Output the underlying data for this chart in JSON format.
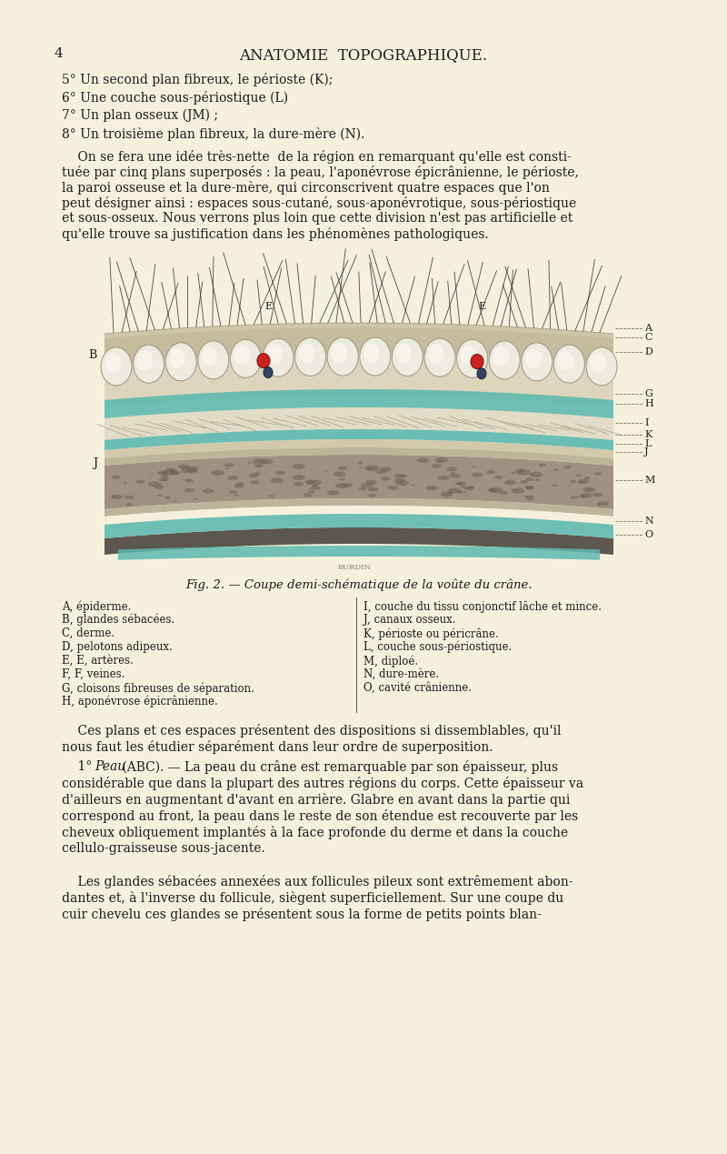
{
  "bg_color": "#f5f0dc",
  "text_color": "#1a1a1a",
  "title_text": "ANATOMIE  TOPOGRAPHIQUE.",
  "page_number": "4",
  "lines_top": [
    "5° Un second plan fibreux, le périoste (K);",
    "6° Une couche sous-périostique (L)",
    "7° Un plan osseux (JM) ;",
    "8° Un troisième plan fibreux, la dure-mère (N)."
  ],
  "paragraph1": "    On se fera une idée très-nette  de la région en remarquant qu'elle est consti-\ntuée par cinq plans superposés : la peau, l'aponévrose épicrânienne, le périoste,\nla paroi osseuse et la dure-mère, qui circonscrivent quatre espaces que l'on\npeut désigner ainsi : espaces sous-cutané, sous-aponévrotique, sous-périostique\net sous-osseux. Nous verrons plus loin que cette division n'est pas artificielle et\nqu'elle trouve sa justification dans les phénomènes pathologiques.",
  "fig_caption": "Fig. 2. — Coupe demi-schématique de la voûte du crâne.",
  "legend_left": [
    "A, épiderme.",
    "B, glandes sébacées.",
    "C, derme.",
    "D, pelotons adipeux.",
    "E, E, artères.",
    "F, F, veines.",
    "G, cloisons fibreuses de séparation.",
    "H, aponévrose épicrânienne."
  ],
  "legend_right": [
    "I, couche du tissu conjonctif lâche et mince.",
    "J, canaux osseux.",
    "K, périoste ou péricrâne.",
    "L, couche sous-périostique.",
    "M, diploé.",
    "N, dure-mère.",
    "O, cavité crânienne."
  ],
  "paragraph2": "    Ces plans et ces espaces présentent des dispositions si dissemblables, qu'il\nnous faut les étudier séparément dans leur ordre de superposition.",
  "paragraph3_start": "    1° ",
  "paragraph3_italic": "Peau",
  "paragraph3_rest": " (ABC). — La peau du crâne est remarquable par son épaisseur, plus\nconsidérable que dans la plupart des autres régions du corps. Cette épaisseur va\nd'ailleurs en augmentant d'avant en arrière. Glabre en avant dans la partie qui\ncorrespond au front, la peau dans le reste de son étendue est recouverte par les\ncheveux obliquement implantés à la face profonde du derme et dans la couche\ncellulo-graisseuse sous-jacente.",
  "paragraph4": "    Les glandes sébacées annexées aux follicules pileux sont extrêmement abon-\ndantes et, à l'inverse du follicule, siègent superficiellement. Sur une coupe du\ncuir chevelu ces glandes se présentent sous la forme de petits points blan-",
  "teal_color": "#5bb8b0",
  "bone_color": "#8a8070",
  "skin_color": "#c8bfa0",
  "fat_color": "#d0c8a8",
  "artery_color": "#cc2222",
  "vein_color": "#223355"
}
